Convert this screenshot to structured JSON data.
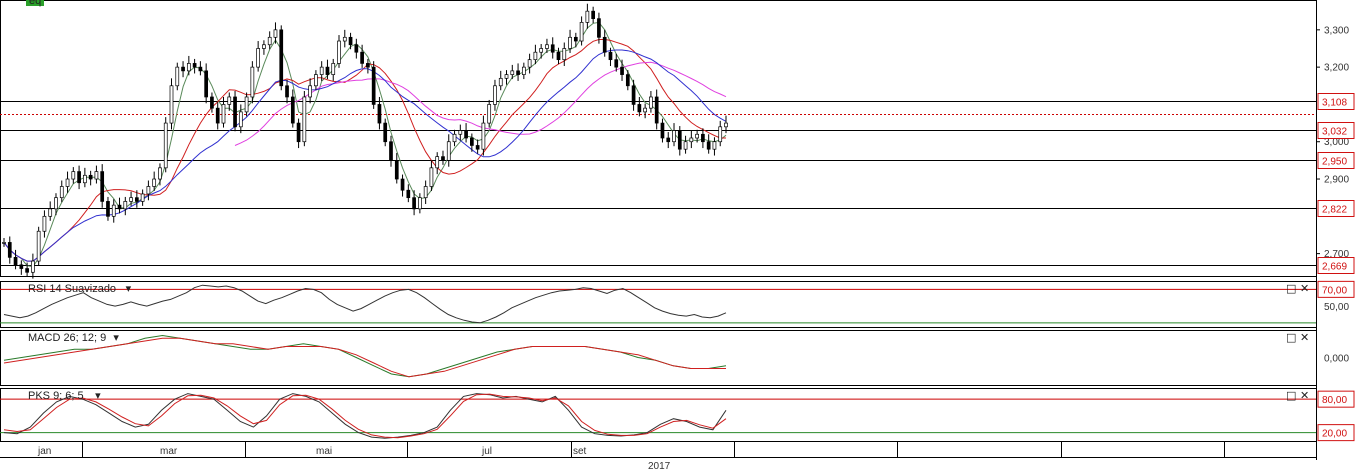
{
  "chart_data": [
    {
      "type": "candlestick",
      "panel": "price",
      "y_ticks": [
        "3,300",
        "3,200",
        "3,000",
        "2,900",
        "2,700"
      ],
      "ylim": [
        2.64,
        3.38
      ],
      "horizontal_levels": [
        {
          "value": 3.108,
          "label": "3,108",
          "color": "#000000"
        },
        {
          "value": 3.075,
          "label": "",
          "color": "#cc0000",
          "style": "dotted"
        },
        {
          "value": 3.032,
          "label": "3,032",
          "color": "#000000"
        },
        {
          "value": 2.95,
          "label": "2,950",
          "color": "#000000"
        },
        {
          "value": 2.822,
          "label": "2,822",
          "color": "#000000"
        },
        {
          "value": 2.669,
          "label": "2,669",
          "color": "#000000"
        }
      ],
      "close_series": [
        2.73,
        2.69,
        2.67,
        2.66,
        2.65,
        2.68,
        2.76,
        2.8,
        2.82,
        2.85,
        2.88,
        2.9,
        2.92,
        2.89,
        2.91,
        2.9,
        2.92,
        2.84,
        2.8,
        2.83,
        2.82,
        2.84,
        2.85,
        2.84,
        2.86,
        2.88,
        2.9,
        2.93,
        3.05,
        3.15,
        3.2,
        3.19,
        3.21,
        3.2,
        3.19,
        3.12,
        3.09,
        3.05,
        3.1,
        3.12,
        3.04,
        3.08,
        3.12,
        3.2,
        3.25,
        3.26,
        3.28,
        3.3,
        3.15,
        3.12,
        3.05,
        3.0,
        3.12,
        3.15,
        3.18,
        3.2,
        3.18,
        3.21,
        3.27,
        3.28,
        3.26,
        3.24,
        3.21,
        3.2,
        3.1,
        3.05,
        3.0,
        2.95,
        2.9,
        2.87,
        2.85,
        2.82,
        2.85,
        2.88,
        2.93,
        2.96,
        2.95,
        3.0,
        3.02,
        3.03,
        3.01,
        2.99,
        2.98,
        3.05,
        3.1,
        3.15,
        3.17,
        3.18,
        3.19,
        3.18,
        3.2,
        3.22,
        3.24,
        3.25,
        3.26,
        3.24,
        3.22,
        3.25,
        3.28,
        3.27,
        3.32,
        3.35,
        3.33,
        3.28,
        3.24,
        3.22,
        3.2,
        3.18,
        3.15,
        3.1,
        3.08,
        3.09,
        3.12,
        3.05,
        3.01,
        3.0,
        3.03,
        2.98,
        3.0,
        3.01,
        3.02,
        3.0,
        2.98,
        3.0,
        3.04,
        3.05
      ],
      "moving_averages": [
        {
          "name": "MA 20",
          "color": "#5a8a5a"
        },
        {
          "name": "MA 50",
          "color": "#d02020"
        },
        {
          "name": "MA 200",
          "color": "#e040e0"
        },
        {
          "name": "MA 100",
          "color": "#3030d0"
        }
      ],
      "legend_label": "eq"
    },
    {
      "type": "line",
      "panel": "rsi",
      "title": "RSI 14 Suavizado",
      "y_ticks": [
        "70,00",
        "50,00"
      ],
      "levels": [
        70,
        30
      ],
      "ylim": [
        25,
        80
      ],
      "series": [
        {
          "name": "",
          "values": [
            40,
            38,
            36,
            38,
            42,
            47,
            52,
            56,
            60,
            63,
            66,
            60,
            56,
            52,
            50,
            52,
            55,
            52,
            50,
            53,
            56,
            58,
            62,
            66,
            72,
            75,
            74,
            73,
            74,
            72,
            68,
            62,
            56,
            53,
            57,
            60,
            64,
            68,
            71,
            70,
            66,
            58,
            52,
            48,
            44,
            47,
            52,
            57,
            62,
            66,
            69,
            70,
            66,
            60,
            53,
            46,
            40,
            36,
            33,
            31,
            30,
            33,
            37,
            42,
            48,
            52,
            56,
            60,
            63,
            66,
            68,
            69,
            70,
            72,
            71,
            68,
            65,
            69,
            71,
            66,
            60,
            54,
            48,
            44,
            41,
            39,
            38,
            40,
            37,
            36,
            38,
            42
          ]
        }
      ]
    },
    {
      "type": "line",
      "panel": "macd",
      "title": "MACD 26; 12; 9",
      "y_ticks": [
        "0,000"
      ],
      "ylim": [
        -0.1,
        0.1
      ],
      "series": [
        {
          "name": "",
          "color": "#2a7a2a",
          "values": [
            -0.01,
            0.0,
            0.01,
            0.02,
            0.03,
            0.03,
            0.04,
            0.05,
            0.07,
            0.08,
            0.07,
            0.06,
            0.05,
            0.04,
            0.03,
            0.03,
            0.04,
            0.05,
            0.04,
            0.03,
            0.0,
            -0.03,
            -0.06,
            -0.07,
            -0.06,
            -0.04,
            -0.02,
            0.0,
            0.02,
            0.03,
            0.04,
            0.04,
            0.04,
            0.04,
            0.03,
            0.02,
            0.0,
            -0.01,
            -0.03,
            -0.04,
            -0.04,
            -0.03
          ]
        },
        {
          "name": "",
          "color": "#d02020",
          "values": [
            -0.02,
            -0.01,
            0.0,
            0.01,
            0.02,
            0.03,
            0.04,
            0.05,
            0.06,
            0.07,
            0.07,
            0.06,
            0.05,
            0.05,
            0.04,
            0.03,
            0.04,
            0.04,
            0.04,
            0.03,
            0.01,
            -0.02,
            -0.05,
            -0.07,
            -0.06,
            -0.05,
            -0.03,
            -0.01,
            0.01,
            0.03,
            0.04,
            0.04,
            0.04,
            0.04,
            0.03,
            0.02,
            0.01,
            -0.01,
            -0.03,
            -0.04,
            -0.04,
            -0.04
          ]
        }
      ]
    },
    {
      "type": "line",
      "panel": "pks",
      "title": "PKS 9; 6; 5",
      "y_ticks": [
        "80,00",
        "20,00"
      ],
      "levels": [
        80,
        20
      ],
      "ylim": [
        5,
        100
      ],
      "series": [
        {
          "name": "",
          "color": "#333333",
          "values": [
            20,
            18,
            30,
            55,
            75,
            85,
            80,
            70,
            55,
            40,
            30,
            35,
            60,
            80,
            90,
            85,
            80,
            60,
            40,
            30,
            50,
            80,
            90,
            85,
            75,
            55,
            35,
            20,
            12,
            10,
            12,
            15,
            20,
            30,
            60,
            85,
            90,
            88,
            82,
            85,
            80,
            75,
            85,
            60,
            30,
            18,
            15,
            14,
            16,
            20,
            35,
            45,
            40,
            30,
            25,
            60
          ]
        },
        {
          "name": "",
          "color": "#d02020",
          "values": [
            25,
            22,
            25,
            45,
            65,
            80,
            82,
            75,
            62,
            48,
            36,
            32,
            50,
            72,
            86,
            87,
            82,
            68,
            50,
            36,
            42,
            70,
            86,
            87,
            80,
            62,
            42,
            26,
            16,
            12,
            11,
            14,
            18,
            26,
            50,
            76,
            88,
            89,
            85,
            84,
            82,
            77,
            82,
            68,
            40,
            24,
            17,
            15,
            15,
            18,
            30,
            40,
            42,
            34,
            28,
            45
          ]
        }
      ]
    }
  ],
  "x_axis": {
    "months": [
      "jan",
      "mar",
      "mai",
      "jul",
      "set"
    ],
    "year": "2017"
  },
  "icons": [
    "maximize-icon",
    "close-icon"
  ],
  "controls": {
    "maximize": "□",
    "close": "✕",
    "dropdown": "▾"
  }
}
